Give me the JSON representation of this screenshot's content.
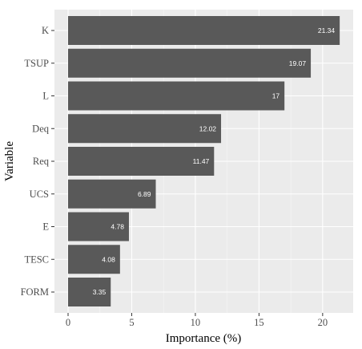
{
  "chart_data": {
    "type": "bar",
    "orientation": "horizontal",
    "categories": [
      "K",
      "TSUP",
      "L",
      "Deq",
      "Req",
      "UCS",
      "E",
      "TESC",
      "FORM"
    ],
    "values": [
      21.34,
      19.07,
      17,
      12.02,
      11.47,
      6.89,
      4.78,
      4.08,
      3.35
    ],
    "value_labels": [
      "21.34",
      "19.07",
      "17",
      "12.02",
      "11.47",
      "6.89",
      "4.78",
      "4.08",
      "3.35"
    ],
    "xlabel": "Importance (%)",
    "ylabel": "Variable",
    "xlim": [
      -1.07,
      22.4
    ],
    "x_ticks": [
      0,
      5,
      10,
      15,
      20
    ],
    "grid": true,
    "legend": "none",
    "colors": {
      "bar": "#595959",
      "panel": "#ebebeb",
      "grid": "#ffffff",
      "label_text": "#ffffff"
    }
  }
}
